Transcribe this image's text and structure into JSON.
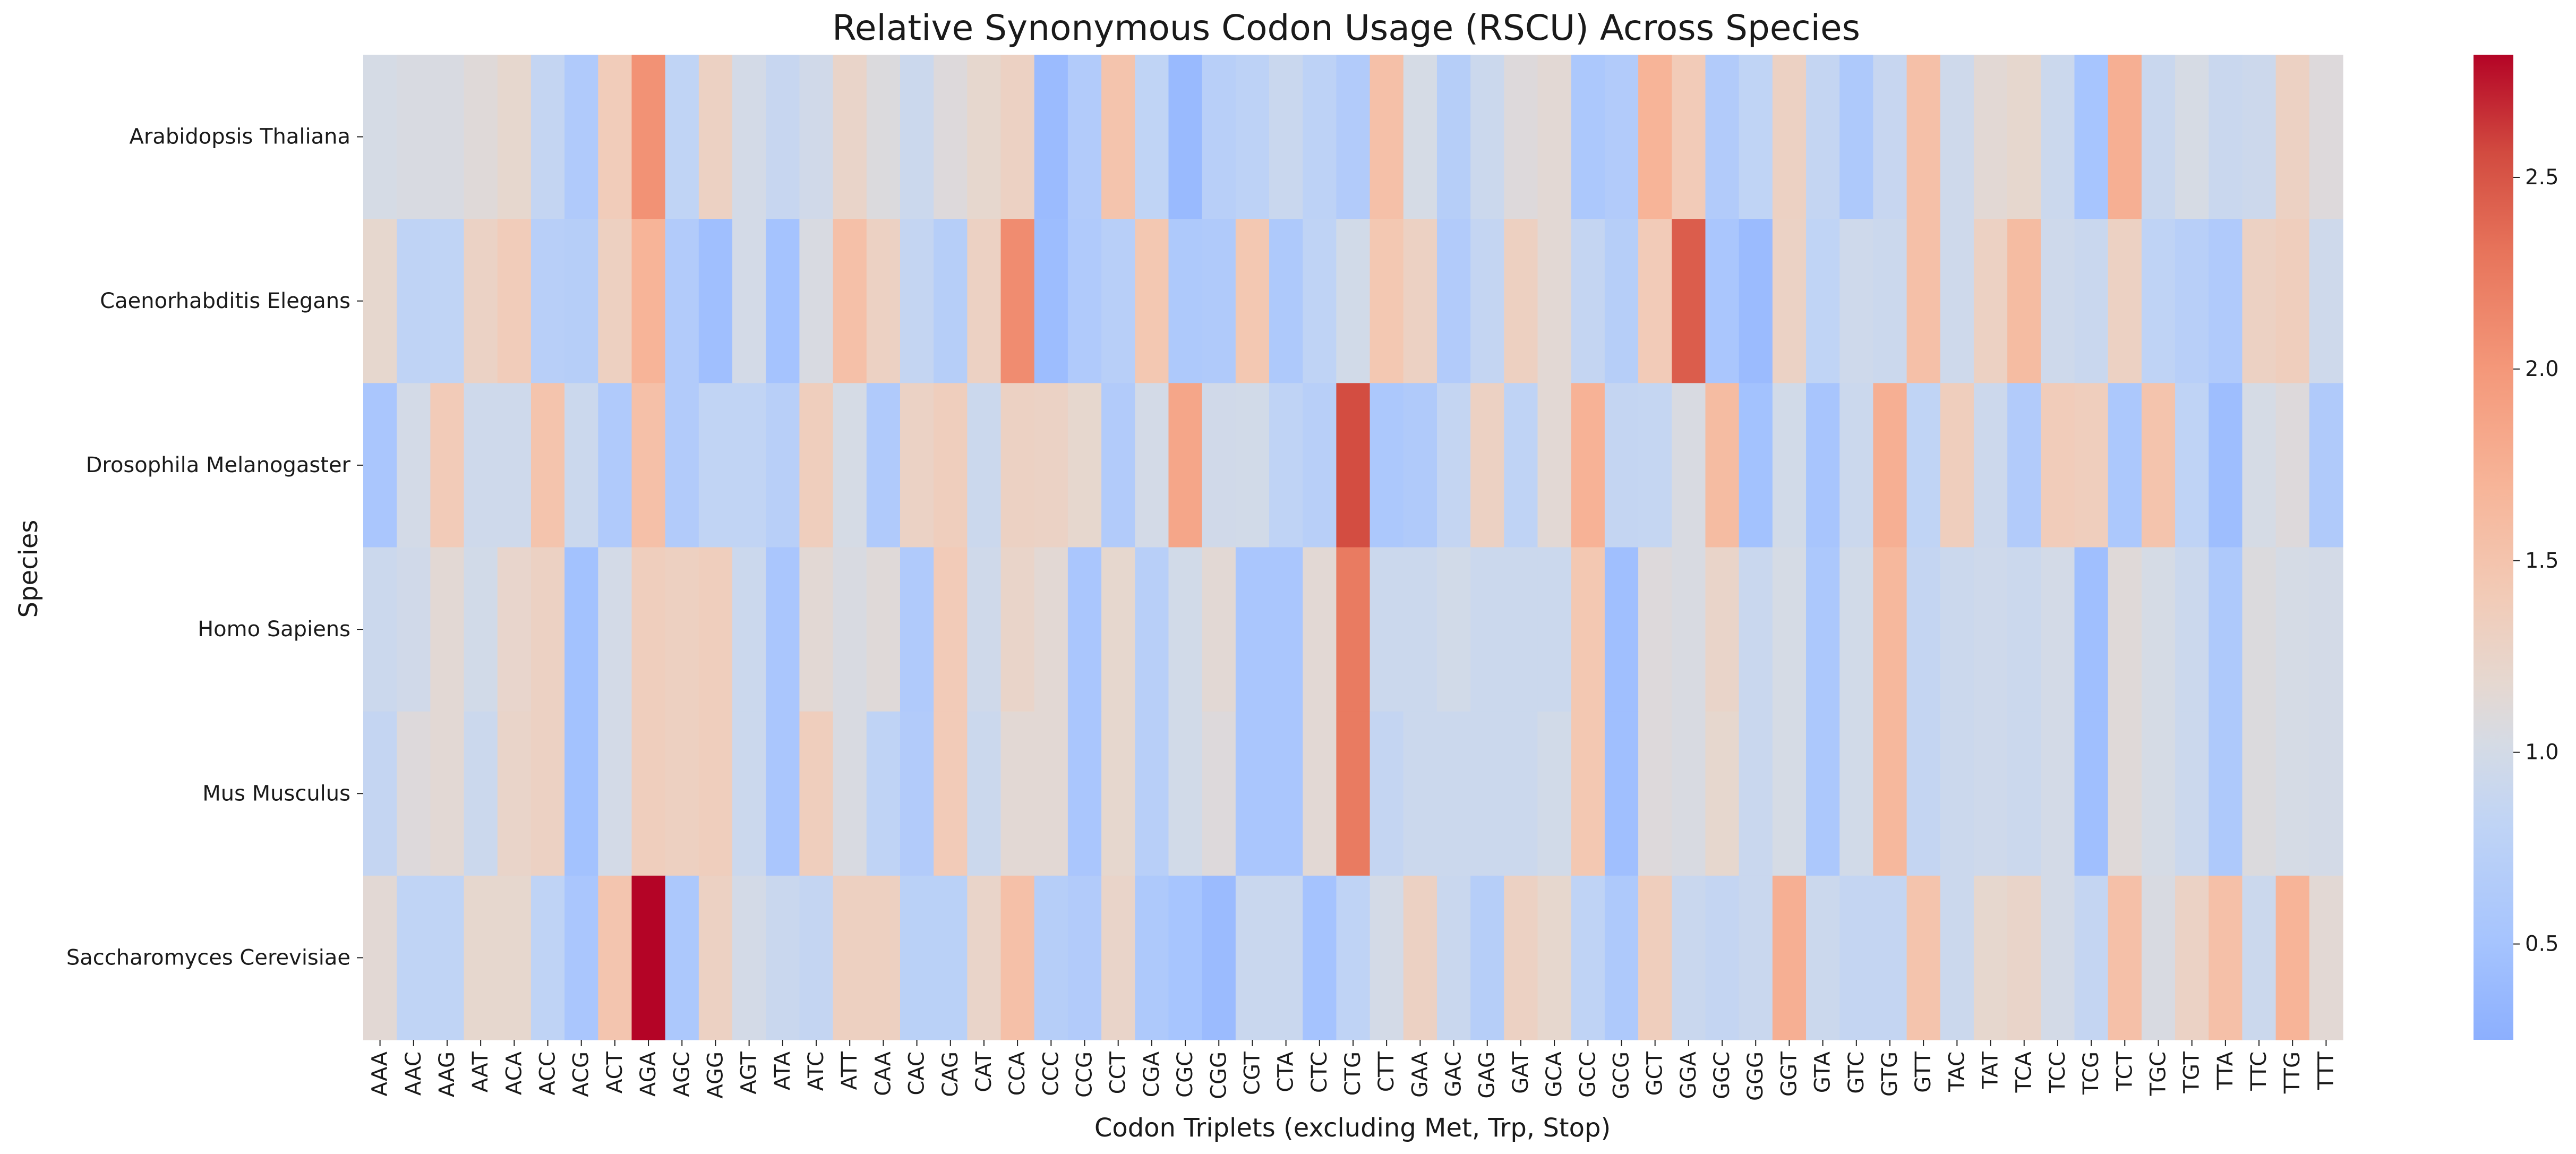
{
  "chart_data": {
    "type": "heatmap",
    "title": "Relative Synonymous Codon Usage (RSCU) Across Species",
    "xlabel": "Codon Triplets (excluding Met, Trp, Stop)",
    "ylabel": "Species",
    "colormap": "coolwarm",
    "color_range": [
      0.25,
      2.82
    ],
    "colorbar_ticks": [
      "0.5",
      "1.0",
      "1.5",
      "2.0",
      "2.5"
    ],
    "x": [
      "AAA",
      "AAC",
      "AAG",
      "AAT",
      "ACA",
      "ACC",
      "ACG",
      "ACT",
      "AGA",
      "AGC",
      "AGG",
      "AGT",
      "ATA",
      "ATC",
      "ATT",
      "CAA",
      "CAC",
      "CAG",
      "CAT",
      "CCA",
      "CCC",
      "CCG",
      "CCT",
      "CGA",
      "CGC",
      "CGG",
      "CGT",
      "CTA",
      "CTC",
      "CTG",
      "CTT",
      "GAA",
      "GAC",
      "GAG",
      "GAT",
      "GCA",
      "GCC",
      "GCG",
      "GCT",
      "GGA",
      "GGC",
      "GGG",
      "GGT",
      "GTA",
      "GTC",
      "GTG",
      "GTT",
      "TAC",
      "TAT",
      "TCA",
      "TCC",
      "TCG",
      "TCT",
      "TGC",
      "TGT",
      "TTA",
      "TTC",
      "TTG",
      "TTT"
    ],
    "y": [
      "Arabidopsis Thaliana",
      "Caenorhabditis Elegans",
      "Drosophila Melanogaster",
      "Homo Sapiens",
      "Mus Musculus",
      "Saccharomyces Cerevisiae"
    ],
    "values": [
      [
        1.02,
        1.05,
        1.05,
        1.12,
        1.2,
        0.85,
        0.62,
        1.38,
        2.05,
        0.82,
        1.3,
        1.0,
        0.88,
        0.97,
        1.25,
        1.08,
        0.92,
        1.1,
        1.2,
        1.3,
        0.4,
        0.65,
        1.5,
        0.82,
        0.38,
        0.72,
        0.78,
        0.9,
        0.78,
        0.65,
        1.55,
        1.02,
        0.7,
        0.92,
        1.1,
        1.15,
        0.58,
        0.65,
        1.7,
        1.4,
        0.65,
        0.82,
        1.3,
        0.85,
        0.6,
        0.88,
        1.55,
        0.95,
        1.15,
        1.2,
        0.92,
        0.52,
        1.75,
        0.9,
        1.03,
        0.9,
        0.93,
        1.3,
        1.1
      ],
      [
        1.2,
        0.8,
        0.82,
        1.28,
        1.38,
        0.72,
        0.7,
        1.32,
        1.7,
        0.65,
        0.45,
        1.0,
        0.5,
        1.05,
        1.55,
        1.3,
        0.85,
        0.7,
        1.3,
        2.1,
        0.42,
        0.62,
        0.72,
        1.45,
        0.6,
        0.63,
        1.45,
        0.6,
        0.8,
        0.98,
        1.45,
        1.3,
        0.65,
        0.85,
        1.32,
        1.15,
        0.85,
        0.7,
        1.4,
        2.45,
        0.55,
        0.4,
        1.28,
        0.82,
        0.95,
        0.92,
        1.55,
        0.95,
        1.3,
        1.6,
        0.95,
        0.9,
        1.3,
        0.8,
        0.72,
        0.62,
        1.3,
        1.35,
        0.95
      ],
      [
        0.55,
        1.0,
        1.4,
        0.95,
        0.95,
        1.5,
        0.92,
        0.62,
        1.55,
        0.65,
        0.83,
        0.83,
        0.72,
        1.35,
        1.02,
        0.62,
        1.28,
        1.35,
        0.92,
        1.3,
        1.28,
        1.2,
        0.65,
        1.0,
        1.85,
        0.97,
        0.98,
        0.8,
        0.72,
        2.55,
        0.58,
        0.63,
        0.85,
        1.3,
        0.8,
        1.15,
        1.72,
        0.85,
        0.86,
        1.05,
        1.6,
        0.48,
        0.98,
        0.53,
        0.92,
        1.75,
        0.82,
        1.35,
        0.93,
        0.65,
        1.38,
        1.35,
        0.58,
        1.5,
        0.8,
        0.43,
        1.02,
        1.1,
        0.63
      ],
      [
        0.92,
        0.97,
        1.15,
        0.98,
        1.22,
        1.3,
        0.48,
        1.0,
        1.35,
        1.32,
        1.35,
        0.92,
        0.55,
        1.15,
        1.05,
        1.12,
        0.62,
        1.4,
        0.96,
        1.25,
        1.15,
        0.55,
        1.2,
        0.72,
        0.98,
        1.15,
        0.55,
        0.55,
        1.15,
        2.25,
        0.92,
        0.92,
        0.98,
        0.92,
        0.92,
        0.92,
        1.45,
        0.45,
        1.1,
        1.05,
        1.25,
        0.9,
        1.02,
        0.58,
        0.98,
        1.65,
        0.85,
        0.92,
        0.95,
        0.92,
        1.0,
        0.45,
        1.12,
        1.02,
        0.92,
        0.6,
        1.08,
        1.02,
        1.0
      ],
      [
        0.85,
        1.1,
        1.15,
        0.92,
        1.25,
        1.3,
        0.48,
        1.0,
        1.35,
        1.32,
        1.35,
        0.92,
        0.55,
        1.35,
        1.05,
        0.8,
        0.65,
        1.4,
        0.92,
        1.15,
        1.15,
        0.55,
        1.2,
        0.72,
        0.98,
        1.1,
        0.55,
        0.55,
        1.15,
        2.25,
        0.85,
        0.92,
        0.92,
        0.92,
        0.92,
        0.98,
        1.45,
        0.45,
        1.1,
        1.05,
        1.2,
        0.9,
        1.02,
        0.58,
        0.98,
        1.65,
        0.85,
        0.92,
        0.95,
        0.92,
        1.0,
        0.45,
        1.12,
        1.02,
        0.92,
        0.6,
        1.08,
        1.02,
        1.0
      ],
      [
        1.15,
        0.82,
        0.82,
        1.2,
        1.2,
        0.8,
        0.55,
        1.48,
        2.82,
        0.58,
        1.3,
        1.0,
        0.9,
        0.85,
        1.32,
        1.32,
        0.75,
        0.75,
        1.25,
        1.55,
        0.7,
        0.65,
        1.25,
        0.6,
        0.52,
        0.4,
        0.9,
        0.9,
        0.5,
        0.8,
        1.0,
        1.3,
        0.9,
        0.7,
        1.3,
        1.2,
        0.8,
        0.6,
        1.35,
        0.9,
        0.85,
        0.9,
        1.75,
        0.92,
        0.85,
        0.85,
        1.5,
        0.92,
        1.2,
        1.25,
        1.0,
        0.85,
        1.55,
        1.05,
        1.28,
        1.55,
        0.92,
        1.7,
        1.15
      ]
    ]
  }
}
